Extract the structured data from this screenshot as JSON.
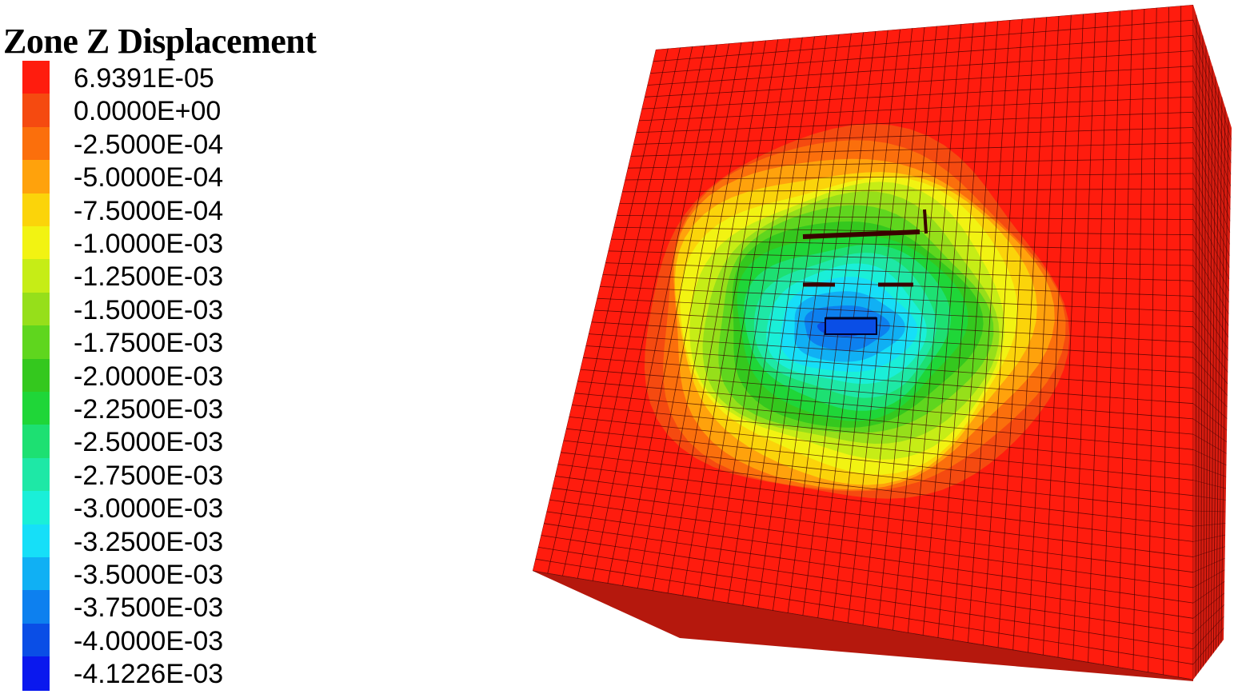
{
  "legend": {
    "title": "Zone Z Displacement",
    "entries": [
      {
        "label": "6.9391E-05",
        "color": "#ff1c0e"
      },
      {
        "label": "0.0000E+00",
        "color": "#f54a10"
      },
      {
        "label": "-2.5000E-04",
        "color": "#fb6f0c"
      },
      {
        "label": "-5.0000E-04",
        "color": "#ffa20c"
      },
      {
        "label": "-7.5000E-04",
        "color": "#fbd40a"
      },
      {
        "label": "-1.0000E-03",
        "color": "#f2f312"
      },
      {
        "label": "-1.2500E-03",
        "color": "#c6ed16"
      },
      {
        "label": "-1.5000E-03",
        "color": "#96df1a"
      },
      {
        "label": "-1.7500E-03",
        "color": "#5fd61e"
      },
      {
        "label": "-2.0000E-03",
        "color": "#34c81e"
      },
      {
        "label": "-2.2500E-03",
        "color": "#1fd638"
      },
      {
        "label": "-2.5000E-03",
        "color": "#1de072"
      },
      {
        "label": "-2.7500E-03",
        "color": "#1ee8a6"
      },
      {
        "label": "-3.0000E-03",
        "color": "#1aefd8"
      },
      {
        "label": "-3.2500E-03",
        "color": "#16dff8"
      },
      {
        "label": "-3.5000E-03",
        "color": "#10b0f4"
      },
      {
        "label": "-3.7500E-03",
        "color": "#0d80ef"
      },
      {
        "label": "-4.0000E-03",
        "color": "#0a4ee6"
      },
      {
        "label": "-4.1226E-03",
        "color": "#0a18ee"
      }
    ]
  },
  "model": {
    "front_color": "#ff1c0e",
    "side_color": "#d81c10",
    "bottom_color": "#b5180d",
    "mesh_color": "#3a0000",
    "contours": [
      {
        "level": "0.0000E+00",
        "color": "#f54a10"
      },
      {
        "level": "-2.5000E-04",
        "color": "#fb6f0c"
      },
      {
        "level": "-5.0000E-04",
        "color": "#ffa20c"
      },
      {
        "level": "-7.5000E-04",
        "color": "#fbd40a"
      },
      {
        "level": "-1.0000E-03",
        "color": "#f2f312"
      },
      {
        "level": "-1.2500E-03",
        "color": "#c6ed16"
      },
      {
        "level": "-1.5000E-03",
        "color": "#96df1a"
      },
      {
        "level": "-1.7500E-03",
        "color": "#5fd61e"
      },
      {
        "level": "-2.0000E-03",
        "color": "#34c81e"
      },
      {
        "level": "-2.2500E-03",
        "color": "#1fd638"
      },
      {
        "level": "-2.5000E-03",
        "color": "#1de072"
      },
      {
        "level": "-2.7500E-03",
        "color": "#1ee8a6"
      },
      {
        "level": "-3.0000E-03",
        "color": "#1aefd8"
      },
      {
        "level": "-3.2500E-03",
        "color": "#16dff8"
      },
      {
        "level": "-3.5000E-03",
        "color": "#10b0f4"
      },
      {
        "level": "-3.7500E-03",
        "color": "#0d80ef"
      },
      {
        "level": "-4.0000E-03",
        "color": "#0a4ee6"
      }
    ]
  }
}
